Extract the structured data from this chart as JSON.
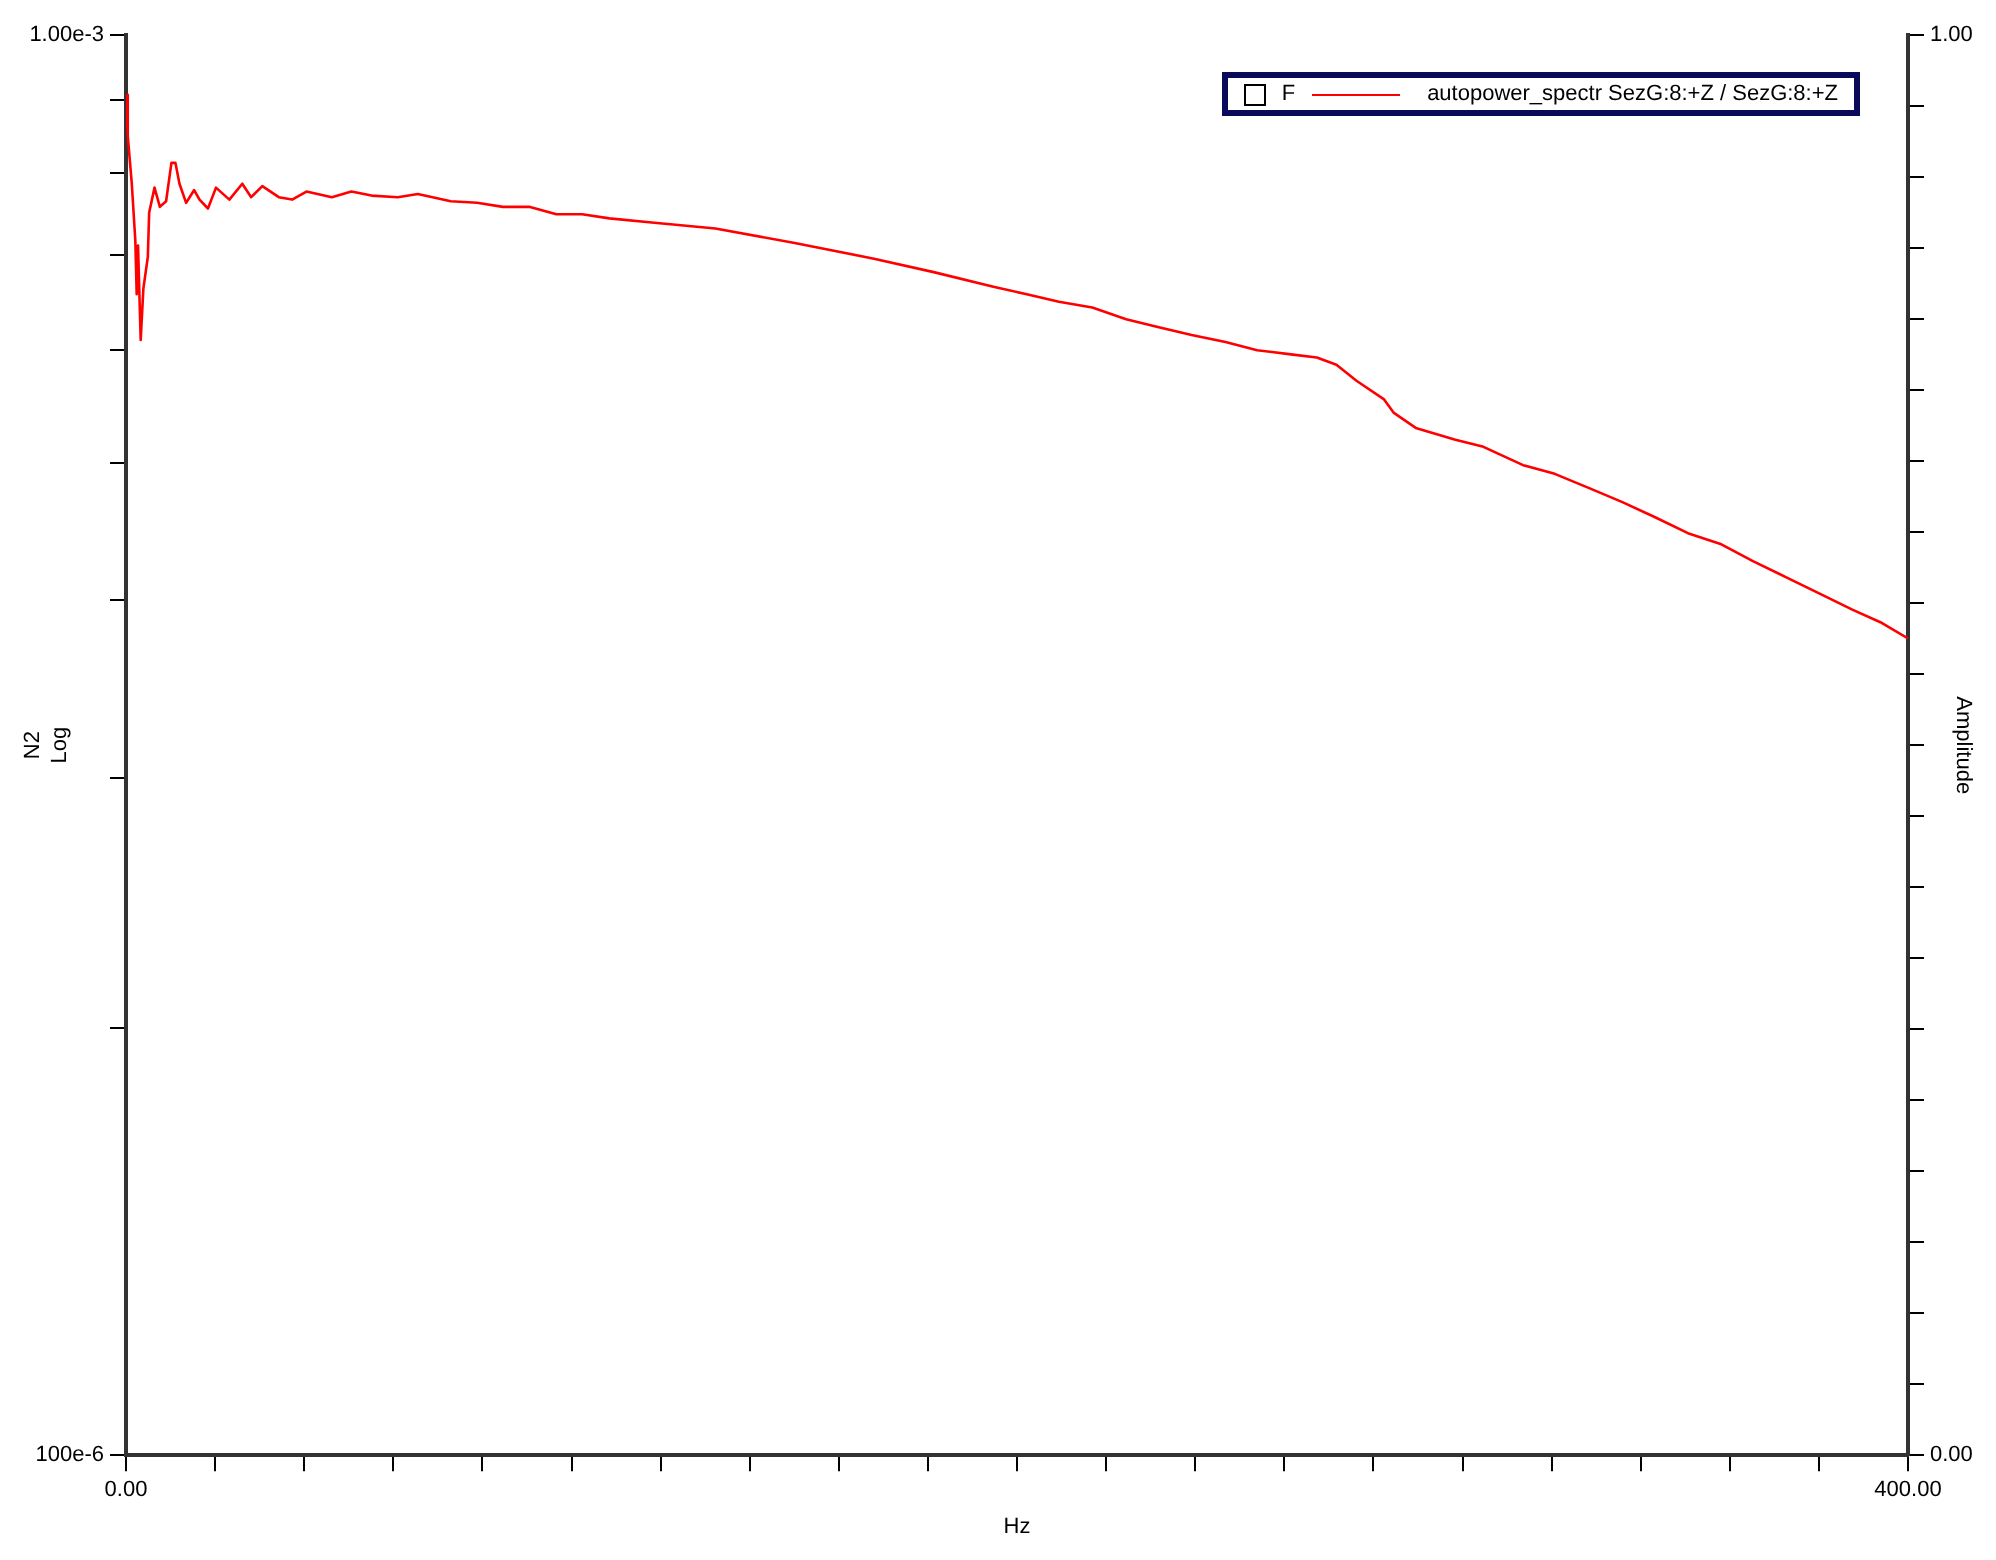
{
  "chart_data": {
    "type": "line",
    "xlabel": "Hz",
    "ylabel": "N2\nLog",
    "y2label": "Amplitude",
    "legend_title": "F",
    "legend": "top right",
    "log": "y",
    "marker": "none",
    "line_style": "solid",
    "xlim": [
      0,
      400
    ],
    "xticks": [
      {
        "value": 0,
        "label": "0.00"
      },
      {
        "value": 20,
        "label": null
      },
      {
        "value": 40,
        "label": null
      },
      {
        "value": 60,
        "label": null
      },
      {
        "value": 80,
        "label": null
      },
      {
        "value": 100,
        "label": null
      },
      {
        "value": 120,
        "label": null
      },
      {
        "value": 140,
        "label": null
      },
      {
        "value": 160,
        "label": null
      },
      {
        "value": 180,
        "label": null
      },
      {
        "value": 200,
        "label": null
      },
      {
        "value": 220,
        "label": null
      },
      {
        "value": 240,
        "label": null
      },
      {
        "value": 260,
        "label": null
      },
      {
        "value": 280,
        "label": null
      },
      {
        "value": 300,
        "label": null
      },
      {
        "value": 320,
        "label": null
      },
      {
        "value": 340,
        "label": null
      },
      {
        "value": 360,
        "label": null
      },
      {
        "value": 380,
        "label": null
      },
      {
        "value": 400,
        "label": "400.00"
      }
    ],
    "ylim": [
      0.0001,
      0.001
    ],
    "yticks": [
      {
        "value": 0.0001,
        "label": "100e-6"
      },
      {
        "value": 0.0002,
        "label": null
      },
      {
        "value": 0.0003,
        "label": null
      },
      {
        "value": 0.0004,
        "label": null
      },
      {
        "value": 0.0005,
        "label": null
      },
      {
        "value": 0.0006,
        "label": null
      },
      {
        "value": 0.0007,
        "label": null
      },
      {
        "value": 0.0008,
        "label": null
      },
      {
        "value": 0.0009,
        "label": null
      },
      {
        "value": 0.001,
        "label": "1.00e-3"
      }
    ],
    "y2lim": [
      0,
      1
    ],
    "y2ticks": [
      {
        "value": 0,
        "label": "0.00"
      },
      {
        "value": 0.05,
        "label": null
      },
      {
        "value": 0.1,
        "label": null
      },
      {
        "value": 0.15,
        "label": null
      },
      {
        "value": 0.2,
        "label": null
      },
      {
        "value": 0.25,
        "label": null
      },
      {
        "value": 0.3,
        "label": null
      },
      {
        "value": 0.35,
        "label": null
      },
      {
        "value": 0.4,
        "label": null
      },
      {
        "value": 0.45,
        "label": null
      },
      {
        "value": 0.5,
        "label": null
      },
      {
        "value": 0.55,
        "label": null
      },
      {
        "value": 0.6,
        "label": null
      },
      {
        "value": 0.65,
        "label": null
      },
      {
        "value": 0.7,
        "label": null
      },
      {
        "value": 0.75,
        "label": null
      },
      {
        "value": 0.8,
        "label": null
      },
      {
        "value": 0.85,
        "label": null
      },
      {
        "value": 0.9,
        "label": null
      },
      {
        "value": 0.95,
        "label": null
      },
      {
        "value": 1,
        "label": "1.00"
      }
    ],
    "x": [
      0,
      0.4,
      1.3,
      2.1,
      2.4,
      2.7,
      3.3,
      3.9,
      4.9,
      5.2,
      6.4,
      7.6,
      9.0,
      10.2,
      11.1,
      12.0,
      13.5,
      15.3,
      16.5,
      18.4,
      20.2,
      23.2,
      26.1,
      28.1,
      30.6,
      34.3,
      37.3,
      40.5,
      46.2,
      50.6,
      55.1,
      61.0,
      65.5,
      72.9,
      78.8,
      84.6,
      90.7,
      96.6,
      102.4,
      108.5,
      118.0,
      132.3,
      150.1,
      167.9,
      181.3,
      194.7,
      202.2,
      209.4,
      216.9,
      224.5,
      231.6,
      239.2,
      246.8,
      253.9,
      261.5,
      267.3,
      271.7,
      276.2,
      282.4,
      284.6,
      289.5,
      298.4,
      304.7,
      313.6,
      320.7,
      328.3,
      335.9,
      343.0,
      350.6,
      358.1,
      365.3,
      372.8,
      380.4,
      387.5,
      393.8,
      400
    ],
    "series": [
      {
        "name": "autopower_spectr SezG:8:+Z / SezG:8:+Z",
        "color": "#ff0000",
        "values": [
          0.000908,
          0.000849,
          0.000786,
          0.000716,
          0.000657,
          0.000711,
          0.00061,
          0.000663,
          0.000698,
          0.00075,
          0.000781,
          0.000757,
          0.000764,
          0.000813,
          0.000813,
          0.000786,
          0.000762,
          0.000778,
          0.000766,
          0.000755,
          0.000781,
          0.000766,
          0.000786,
          0.000769,
          0.000783,
          0.000769,
          0.000766,
          0.000776,
          0.000769,
          0.000776,
          0.000771,
          0.000769,
          0.000773,
          0.000764,
          0.000762,
          0.000757,
          0.000757,
          0.000748,
          0.000748,
          0.000743,
          0.000738,
          0.000731,
          0.000714,
          0.000696,
          0.000681,
          0.000665,
          0.000657,
          0.000649,
          0.000643,
          0.000631,
          0.000623,
          0.000615,
          0.000608,
          0.0006,
          0.000596,
          0.000593,
          0.000586,
          0.000571,
          0.000554,
          0.000542,
          0.000529,
          0.000519,
          0.000513,
          0.000498,
          0.000491,
          0.00048,
          0.000469,
          0.000458,
          0.000446,
          0.000438,
          0.000426,
          0.000415,
          0.000404,
          0.000394,
          0.000386,
          0.000376
        ]
      }
    ]
  }
}
